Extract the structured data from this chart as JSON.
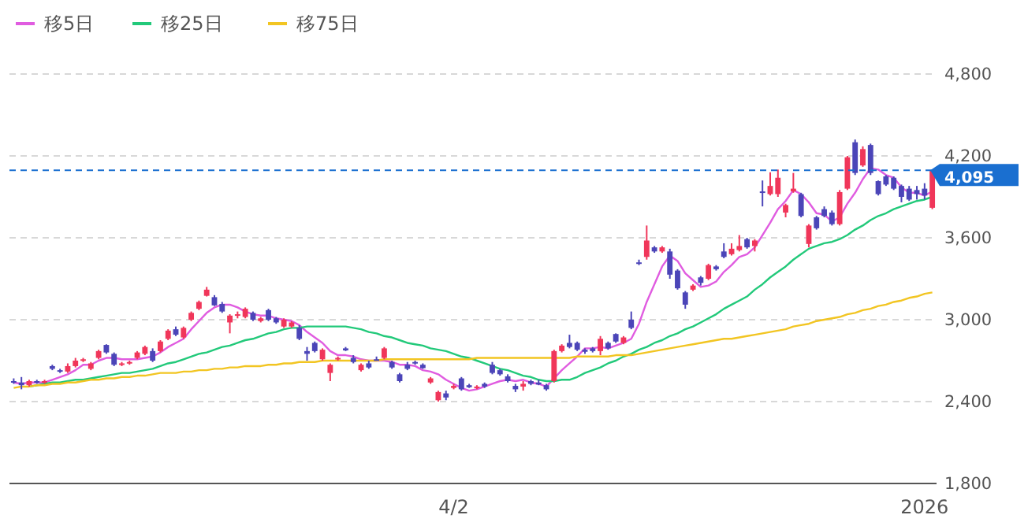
{
  "chart_data": {
    "type": "candlestick",
    "categories": [
      null,
      null,
      null,
      null,
      null,
      null,
      null,
      null,
      null,
      null,
      null,
      null,
      null,
      null,
      null,
      null,
      null,
      null,
      null,
      null,
      null,
      null,
      null,
      null,
      null,
      null,
      null,
      null,
      null,
      null,
      null,
      null,
      null,
      null,
      null,
      null,
      null,
      null,
      null,
      null,
      null,
      null,
      null,
      null,
      null,
      null,
      null,
      null,
      null,
      null,
      null,
      null,
      null,
      null,
      null,
      null,
      null,
      "4/2",
      null,
      null,
      null,
      null,
      null,
      null,
      null,
      null,
      null,
      null,
      null,
      null,
      null,
      null,
      null,
      null,
      null,
      null,
      null,
      null,
      null,
      null,
      null,
      null,
      null,
      null,
      null,
      null,
      null,
      null,
      null,
      null,
      null,
      null,
      null,
      null,
      null,
      null,
      null,
      null,
      null,
      null,
      null,
      null,
      null,
      null,
      null,
      null,
      null,
      null,
      null,
      null,
      null,
      null,
      null,
      null,
      null,
      null,
      null,
      null,
      "2026",
      null
    ],
    "ohlc": [
      [
        2550,
        2570,
        2530,
        2540
      ],
      [
        2540,
        2580,
        2490,
        2520
      ],
      [
        2520,
        2560,
        2510,
        2550
      ],
      [
        2550,
        2560,
        2530,
        2540
      ],
      [
        2540,
        2560,
        2530,
        2550
      ],
      [
        2660,
        2670,
        2630,
        2640
      ],
      [
        2630,
        2640,
        2610,
        2620
      ],
      [
        2620,
        2680,
        2610,
        2660
      ],
      [
        2660,
        2720,
        2650,
        2700
      ],
      [
        2700,
        2720,
        2690,
        2710
      ],
      [
        2640,
        2690,
        2630,
        2680
      ],
      [
        2720,
        2780,
        2710,
        2770
      ],
      [
        2815,
        2820,
        2750,
        2760
      ],
      [
        2750,
        2760,
        2660,
        2670
      ],
      [
        2670,
        2690,
        2660,
        2680
      ],
      [
        2680,
        2700,
        2670,
        2690
      ],
      [
        2720,
        2770,
        2710,
        2760
      ],
      [
        2750,
        2810,
        2740,
        2800
      ],
      [
        2770,
        2790,
        2690,
        2700
      ],
      [
        2770,
        2850,
        2760,
        2840
      ],
      [
        2860,
        2930,
        2850,
        2920
      ],
      [
        2930,
        2950,
        2880,
        2890
      ],
      [
        2870,
        2950,
        2860,
        2940
      ],
      [
        3000,
        3060,
        2990,
        3050
      ],
      [
        3080,
        3140,
        3070,
        3130
      ],
      [
        3175,
        3240,
        3170,
        3220
      ],
      [
        3165,
        3180,
        3100,
        3105
      ],
      [
        3115,
        3130,
        3050,
        3060
      ],
      [
        2980,
        3040,
        2900,
        3030
      ],
      [
        3030,
        3060,
        3010,
        3040
      ],
      [
        3020,
        3090,
        3010,
        3080
      ],
      [
        3050,
        3060,
        2990,
        3000
      ],
      [
        2990,
        3020,
        2980,
        3010
      ],
      [
        3070,
        3080,
        2990,
        3000
      ],
      [
        3010,
        3020,
        2970,
        2980
      ],
      [
        2950,
        3010,
        2940,
        3000
      ],
      [
        2950,
        2990,
        2940,
        2980
      ],
      [
        2940,
        2960,
        2850,
        2860
      ],
      [
        2770,
        2800,
        2700,
        2750
      ],
      [
        2830,
        2840,
        2760,
        2770
      ],
      [
        2710,
        2790,
        2700,
        2780
      ],
      [
        2610,
        2680,
        2550,
        2670
      ],
      [
        2710,
        2730,
        2700,
        2720
      ],
      [
        2790,
        2800,
        2770,
        2775
      ],
      [
        2720,
        2740,
        2680,
        2690
      ],
      [
        2630,
        2680,
        2620,
        2670
      ],
      [
        2680,
        2700,
        2640,
        2650
      ],
      [
        2710,
        2730,
        2700,
        2705
      ],
      [
        2720,
        2800,
        2710,
        2790
      ],
      [
        2690,
        2700,
        2640,
        2650
      ],
      [
        2600,
        2610,
        2540,
        2550
      ],
      [
        2670,
        2690,
        2630,
        2640
      ],
      [
        2690,
        2700,
        2670,
        2680
      ],
      [
        2670,
        2680,
        2640,
        2645
      ],
      [
        2540,
        2580,
        2530,
        2570
      ],
      [
        2410,
        2480,
        2400,
        2470
      ],
      [
        2460,
        2480,
        2410,
        2430
      ],
      [
        2500,
        2530,
        2490,
        2515
      ],
      [
        2570,
        2580,
        2480,
        2490
      ],
      [
        2520,
        2530,
        2500,
        2505
      ],
      [
        2500,
        2520,
        2490,
        2510
      ],
      [
        2530,
        2540,
        2500,
        2510
      ],
      [
        2670,
        2690,
        2600,
        2610
      ],
      [
        2630,
        2640,
        2590,
        2600
      ],
      [
        2585,
        2600,
        2540,
        2550
      ],
      [
        2515,
        2530,
        2470,
        2490
      ],
      [
        2510,
        2550,
        2480,
        2530
      ],
      [
        2550,
        2560,
        2520,
        2530
      ],
      [
        2540,
        2560,
        2520,
        2525
      ],
      [
        2520,
        2530,
        2480,
        2490
      ],
      [
        2550,
        2780,
        2540,
        2770
      ],
      [
        2770,
        2820,
        2760,
        2810
      ],
      [
        2830,
        2890,
        2790,
        2800
      ],
      [
        2830,
        2840,
        2770,
        2780
      ],
      [
        2780,
        2790,
        2750,
        2765
      ],
      [
        2790,
        2800,
        2760,
        2770
      ],
      [
        2770,
        2880,
        2740,
        2860
      ],
      [
        2830,
        2840,
        2780,
        2790
      ],
      [
        2895,
        2900,
        2830,
        2840
      ],
      [
        2830,
        2880,
        2820,
        2870
      ],
      [
        3000,
        3060,
        2930,
        2940
      ],
      [
        3420,
        3440,
        3400,
        3410
      ],
      [
        3460,
        3690,
        3440,
        3580
      ],
      [
        3530,
        3540,
        3490,
        3500
      ],
      [
        3500,
        3540,
        3490,
        3530
      ],
      [
        3500,
        3520,
        3300,
        3330
      ],
      [
        3360,
        3370,
        3220,
        3230
      ],
      [
        3200,
        3210,
        3080,
        3110
      ],
      [
        3220,
        3260,
        3210,
        3250
      ],
      [
        3310,
        3320,
        3250,
        3270
      ],
      [
        3300,
        3410,
        3290,
        3400
      ],
      [
        3390,
        3400,
        3360,
        3370
      ],
      [
        3500,
        3560,
        3450,
        3460
      ],
      [
        3480,
        3560,
        3470,
        3520
      ],
      [
        3510,
        3620,
        3500,
        3540
      ],
      [
        3590,
        3600,
        3520,
        3530
      ],
      [
        3540,
        3590,
        3500,
        3580
      ],
      [
        3940,
        4020,
        3830,
        3930
      ],
      [
        3920,
        4080,
        3910,
        3980
      ],
      [
        3920,
        4100,
        3900,
        4040
      ],
      [
        3785,
        3850,
        3750,
        3840
      ],
      [
        3940,
        4075,
        3930,
        3960
      ],
      [
        3920,
        3930,
        3750,
        3760
      ],
      [
        3555,
        3700,
        3530,
        3690
      ],
      [
        3750,
        3760,
        3660,
        3670
      ],
      [
        3810,
        3830,
        3750,
        3760
      ],
      [
        3785,
        3800,
        3690,
        3700
      ],
      [
        3700,
        3950,
        3690,
        3935
      ],
      [
        3960,
        4200,
        3950,
        4190
      ],
      [
        4300,
        4320,
        4060,
        4075
      ],
      [
        4130,
        4270,
        4120,
        4250
      ],
      [
        4280,
        4290,
        4060,
        4075
      ],
      [
        4015,
        4020,
        3910,
        3920
      ],
      [
        4050,
        4060,
        3980,
        3990
      ],
      [
        4040,
        4050,
        3950,
        3960
      ],
      [
        3980,
        3990,
        3860,
        3900
      ],
      [
        3960,
        3980,
        3870,
        3880
      ],
      [
        3950,
        3980,
        3880,
        3920
      ],
      [
        3960,
        4000,
        3880,
        3910
      ],
      [
        3820,
        4095,
        3810,
        4095
      ]
    ],
    "colors": [
      "#4b45b8",
      "#4b45b8",
      "#f0365a",
      "#4b45b8",
      "#f0365a",
      "#4b45b8",
      "#4b45b8",
      "#f0365a",
      "#f0365a",
      "#f0365a",
      "#f0365a",
      "#f0365a",
      "#4b45b8",
      "#4b45b8",
      "#f0365a",
      "#f0365a",
      "#f0365a",
      "#f0365a",
      "#4b45b8",
      "#f0365a",
      "#f0365a",
      "#4b45b8",
      "#f0365a",
      "#f0365a",
      "#f0365a",
      "#f0365a",
      "#4b45b8",
      "#4b45b8",
      "#f0365a",
      "#f0365a",
      "#f0365a",
      "#4b45b8",
      "#f0365a",
      "#4b45b8",
      "#4b45b8",
      "#f0365a",
      "#f0365a",
      "#4b45b8",
      "#4b45b8",
      "#4b45b8",
      "#f0365a",
      "#f0365a",
      "#f0365a",
      "#4b45b8",
      "#4b45b8",
      "#f0365a",
      "#4b45b8",
      "#4b45b8",
      "#f0365a",
      "#4b45b8",
      "#4b45b8",
      "#4b45b8",
      "#4b45b8",
      "#4b45b8",
      "#f0365a",
      "#f0365a",
      "#4b45b8",
      "#f0365a",
      "#4b45b8",
      "#4b45b8",
      "#f0365a",
      "#4b45b8",
      "#4b45b8",
      "#4b45b8",
      "#4b45b8",
      "#4b45b8",
      "#f0365a",
      "#4b45b8",
      "#4b45b8",
      "#4b45b8",
      "#f0365a",
      "#f0365a",
      "#4b45b8",
      "#4b45b8",
      "#4b45b8",
      "#4b45b8",
      "#f0365a",
      "#4b45b8",
      "#4b45b8",
      "#f0365a",
      "#4b45b8",
      "#4b45b8",
      "#f0365a",
      "#4b45b8",
      "#f0365a",
      "#4b45b8",
      "#4b45b8",
      "#4b45b8",
      "#f0365a",
      "#4b45b8",
      "#f0365a",
      "#4b45b8",
      "#4b45b8",
      "#f0365a",
      "#f0365a",
      "#4b45b8",
      "#f0365a",
      "#4b45b8",
      "#f0365a",
      "#f0365a",
      "#f0365a",
      "#f0365a",
      "#4b45b8",
      "#f0365a",
      "#4b45b8",
      "#4b45b8",
      "#4b45b8",
      "#f0365a",
      "#f0365a",
      "#4b45b8",
      "#f0365a",
      "#4b45b8",
      "#4b45b8",
      "#4b45b8",
      "#4b45b8",
      "#4b45b8",
      "#4b45b8",
      "#4b45b8",
      "#4b45b8",
      "#f0365a"
    ],
    "series": [
      {
        "name": "移5日",
        "type": "line",
        "color": "#e05ce0",
        "values": [
          2540,
          2530,
          2540,
          2540,
          2540,
          2560,
          2580,
          2600,
          2630,
          2670,
          2670,
          2700,
          2720,
          2720,
          2710,
          2710,
          2710,
          2720,
          2730,
          2760,
          2800,
          2830,
          2860,
          2930,
          2990,
          3050,
          3090,
          3110,
          3110,
          3090,
          3060,
          3040,
          3030,
          3030,
          3010,
          3000,
          2990,
          2960,
          2910,
          2870,
          2830,
          2770,
          2740,
          2740,
          2730,
          2710,
          2700,
          2700,
          2700,
          2690,
          2670,
          2670,
          2660,
          2630,
          2620,
          2600,
          2560,
          2530,
          2500,
          2480,
          2490,
          2510,
          2530,
          2550,
          2560,
          2550,
          2560,
          2540,
          2530,
          2510,
          2570,
          2630,
          2680,
          2730,
          2790,
          2790,
          2800,
          2790,
          2810,
          2830,
          2860,
          2970,
          3130,
          3260,
          3390,
          3470,
          3430,
          3340,
          3290,
          3240,
          3250,
          3280,
          3350,
          3400,
          3460,
          3480,
          3530,
          3620,
          3710,
          3810,
          3870,
          3950,
          3920,
          3860,
          3780,
          3770,
          3720,
          3750,
          3850,
          3930,
          4030,
          4110,
          4100,
          4060,
          4040,
          3970,
          3930,
          3930,
          3910,
          3940
        ]
      },
      {
        "name": "移25日",
        "type": "line",
        "color": "#22c97a",
        "values": [
          null,
          null,
          2510,
          2520,
          2530,
          2540,
          2540,
          2550,
          2560,
          2560,
          2570,
          2580,
          2590,
          2600,
          2610,
          2610,
          2620,
          2630,
          2640,
          2660,
          2680,
          2690,
          2710,
          2730,
          2750,
          2760,
          2780,
          2800,
          2810,
          2830,
          2850,
          2860,
          2880,
          2900,
          2910,
          2930,
          2940,
          2940,
          2950,
          2950,
          2950,
          2950,
          2950,
          2950,
          2940,
          2930,
          2910,
          2900,
          2880,
          2870,
          2850,
          2830,
          2820,
          2810,
          2790,
          2780,
          2770,
          2750,
          2730,
          2720,
          2700,
          2680,
          2660,
          2640,
          2630,
          2610,
          2590,
          2580,
          2560,
          2550,
          2550,
          2560,
          2560,
          2580,
          2610,
          2630,
          2650,
          2680,
          2700,
          2730,
          2750,
          2780,
          2800,
          2830,
          2850,
          2880,
          2900,
          2930,
          2950,
          2980,
          3010,
          3040,
          3080,
          3110,
          3140,
          3170,
          3220,
          3260,
          3310,
          3350,
          3390,
          3440,
          3480,
          3520,
          3540,
          3560,
          3570,
          3590,
          3620,
          3660,
          3690,
          3730,
          3760,
          3780,
          3810,
          3830,
          3850,
          3870,
          3880,
          3900
        ]
      },
      {
        "name": "移75日",
        "type": "line",
        "color": "#f2c522",
        "values": [
          2500,
          2510,
          2510,
          2520,
          2520,
          2530,
          2530,
          2540,
          2540,
          2550,
          2560,
          2560,
          2570,
          2570,
          2580,
          2580,
          2590,
          2590,
          2600,
          2610,
          2610,
          2610,
          2620,
          2620,
          2630,
          2630,
          2640,
          2640,
          2650,
          2650,
          2660,
          2660,
          2660,
          2670,
          2670,
          2680,
          2680,
          2690,
          2690,
          2690,
          2700,
          2700,
          2700,
          2700,
          2700,
          2700,
          2700,
          2700,
          2710,
          2710,
          2710,
          2710,
          2710,
          2710,
          2710,
          2710,
          2710,
          2710,
          2710,
          2710,
          2720,
          2720,
          2720,
          2720,
          2720,
          2720,
          2720,
          2720,
          2720,
          2720,
          2720,
          2720,
          2720,
          2730,
          2730,
          2730,
          2730,
          2730,
          2740,
          2740,
          2740,
          2750,
          2760,
          2770,
          2780,
          2790,
          2800,
          2810,
          2820,
          2830,
          2840,
          2850,
          2860,
          2860,
          2870,
          2880,
          2890,
          2900,
          2910,
          2920,
          2930,
          2950,
          2960,
          2970,
          2990,
          3000,
          3010,
          3020,
          3040,
          3050,
          3070,
          3080,
          3100,
          3110,
          3130,
          3140,
          3160,
          3170,
          3190,
          3200
        ]
      }
    ],
    "ylim": [
      1800,
      4800
    ],
    "yticks": [
      {
        "value": 1800,
        "label": "1,800"
      },
      {
        "value": 2400,
        "label": "2,400"
      },
      {
        "value": 3000,
        "label": "3,000"
      },
      {
        "value": 3600,
        "label": "3,600"
      },
      {
        "value": 4200,
        "label": "4,200"
      },
      {
        "value": 4800,
        "label": "4,800"
      }
    ],
    "grid": "y",
    "legend": "top left",
    "ref_lines": [
      {
        "axis": "y",
        "value": 4095,
        "label": "4,095",
        "color": "#1a6fd0",
        "line_style": "dashed"
      }
    ]
  }
}
